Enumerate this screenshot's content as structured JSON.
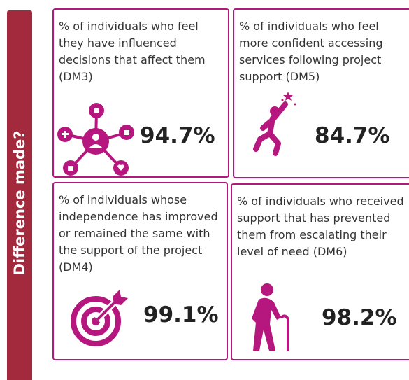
{
  "sidebar": {
    "label": "Difference made?"
  },
  "cards": [
    {
      "description": "% of individuals who feel they have influenced decisions that affect them (DM3)",
      "value": "94.7%"
    },
    {
      "description": "% of individuals who feel more confident accessing services following project support (DM5)",
      "value": "84.7%"
    },
    {
      "description": "% of individuals whose independence has improved or remained the same with the support of the project (DM4)",
      "value": "99.1%"
    },
    {
      "description": "% of individuals who received support that has prevented them from escalating their level of need (DM6)",
      "value": "98.2%"
    }
  ]
}
